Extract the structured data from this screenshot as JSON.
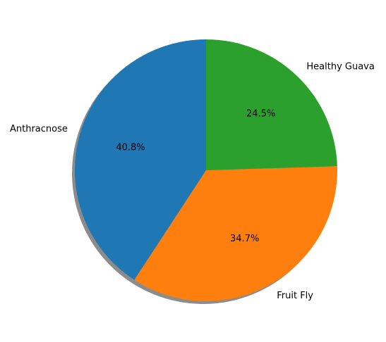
{
  "chart_data": {
    "type": "pie",
    "title": "",
    "start_angle_deg": 90,
    "counterclock": true,
    "shadow": true,
    "slices": [
      {
        "label": "Anthracnose",
        "value": 40.8,
        "pct_label": "40.8%",
        "color": "#1f77b4"
      },
      {
        "label": "Fruit Fly",
        "value": 34.7,
        "pct_label": "34.7%",
        "color": "#ff7f0e"
      },
      {
        "label": "Healthy Guava",
        "value": 24.5,
        "pct_label": "24.5%",
        "color": "#2ca02c"
      }
    ]
  }
}
